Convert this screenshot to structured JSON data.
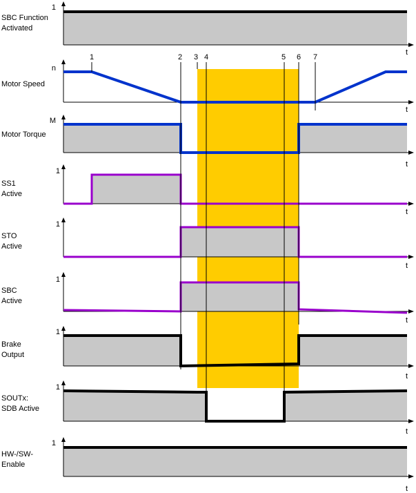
{
  "axis_symbols": {
    "time": "t",
    "one": "1",
    "speed": "n",
    "torque": "M"
  },
  "event_markers": [
    "1",
    "2",
    "3",
    "4",
    "5",
    "6",
    "7"
  ],
  "signals": [
    {
      "id": "sbc-function-activated",
      "label_lines": [
        "SBC Function",
        "Activated"
      ],
      "ylabel": "1"
    },
    {
      "id": "motor-speed",
      "label_lines": [
        "Motor Speed"
      ],
      "ylabel": "n"
    },
    {
      "id": "motor-torque",
      "label_lines": [
        "Motor Torque"
      ],
      "ylabel": "M"
    },
    {
      "id": "ss1-active",
      "label_lines": [
        "SS1",
        "Active"
      ],
      "ylabel": "1"
    },
    {
      "id": "sto-active",
      "label_lines": [
        "STO",
        "Active"
      ],
      "ylabel": "1"
    },
    {
      "id": "sbc-active",
      "label_lines": [
        "SBC",
        "Active"
      ],
      "ylabel": "1"
    },
    {
      "id": "brake-output",
      "label_lines": [
        "Brake",
        "Output"
      ],
      "ylabel": "1"
    },
    {
      "id": "soutx-sdb-active",
      "label_lines": [
        "SOUTx:",
        "SDB Active"
      ],
      "ylabel": "1"
    },
    {
      "id": "hw-sw-enable",
      "label_lines": [
        "HW-/SW-",
        "Enable"
      ],
      "ylabel": "1"
    }
  ],
  "colors": {
    "highlight": "#FFCC00",
    "fill": "#C8C8C8",
    "blue_trace": "#0033CC",
    "purple_trace": "#9900CC",
    "black_trace": "#000000"
  }
}
